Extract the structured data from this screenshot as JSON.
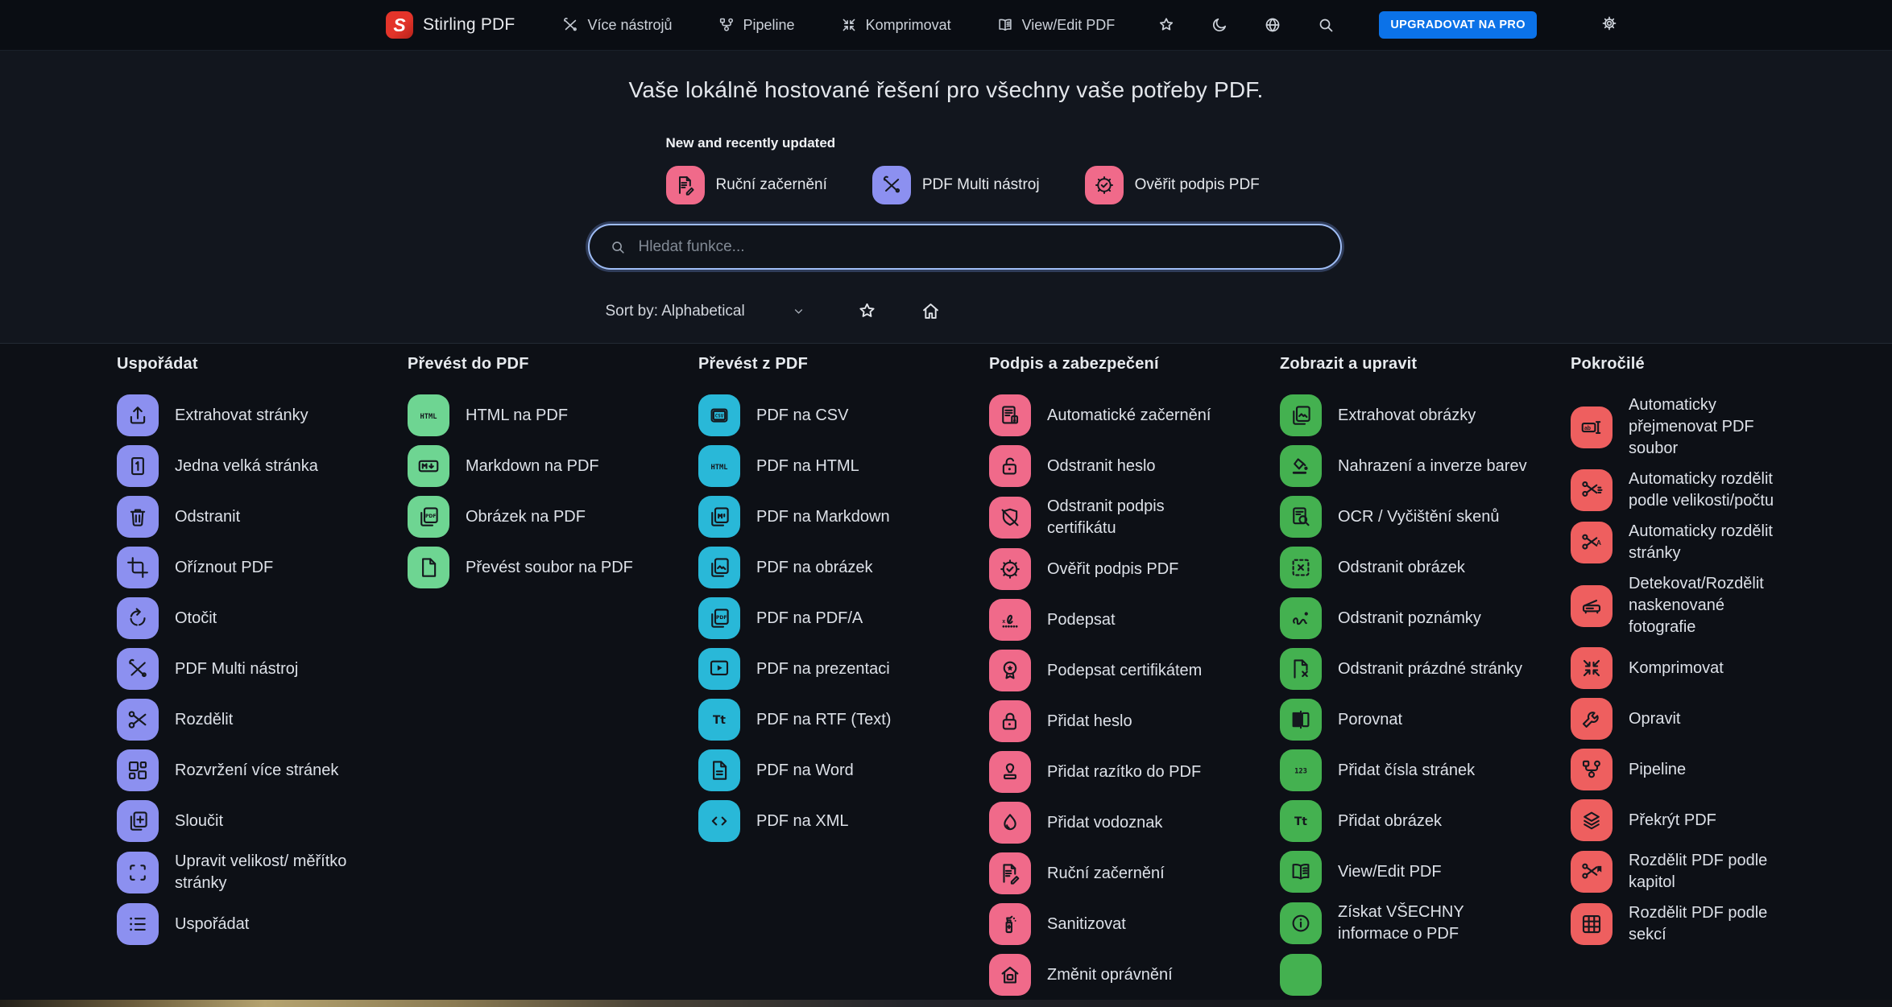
{
  "palette": {
    "purple": "#8c90f0",
    "mint": "#6ed592",
    "cyan": "#29b8d8",
    "pink": "#f06a8a",
    "green": "#44b150",
    "red": "#ee5f5f",
    "accent_blue": "#0b72e8"
  },
  "navbar": {
    "logo_letter": "S",
    "brand": "Stirling PDF",
    "items": [
      {
        "label": "Více nástrojů",
        "icon": "multitool"
      },
      {
        "label": "Pipeline",
        "icon": "pipeline"
      },
      {
        "label": "Komprimovat",
        "icon": "compress"
      },
      {
        "label": "View/Edit PDF",
        "icon": "book"
      }
    ],
    "action_icons": [
      "star",
      "moon",
      "globe",
      "search"
    ],
    "upgrade_label": "UPGRADOVAT NA PRO",
    "settings_icon": "gear"
  },
  "hero": {
    "title": "Vaše lokálně hostované řešení pro všechny vaše potřeby PDF.",
    "new_heading": "New and recently updated",
    "pills": [
      {
        "label": "Ruční začernění",
        "icon": "docedit",
        "color": "pink"
      },
      {
        "label": "PDF Multi nástroj",
        "icon": "multitool",
        "color": "purple"
      },
      {
        "label": "Ověřit podpis PDF",
        "icon": "sealcheck",
        "color": "pink"
      }
    ],
    "search_placeholder": "Hledat funkce...",
    "sort_label": "Sort by: Alphabetical"
  },
  "tools": {
    "columns": [
      {
        "title": "Uspořádat",
        "color": "purple",
        "items": [
          {
            "label": "Extrahovat stránky",
            "icon": "upload"
          },
          {
            "label": "Jedna velká stránka",
            "icon": "page1"
          },
          {
            "label": "Odstranit",
            "icon": "trash"
          },
          {
            "label": "Oříznout PDF",
            "icon": "crop"
          },
          {
            "label": "Otočit",
            "icon": "rotate"
          },
          {
            "label": "PDF Multi nástroj",
            "icon": "multitool"
          },
          {
            "label": "Rozdělit",
            "icon": "scissors"
          },
          {
            "label": "Rozvržení více stránek",
            "icon": "layout"
          },
          {
            "label": "Sloučit",
            "icon": "merge"
          },
          {
            "label": "Upravit velikost/ měřítko stránky",
            "icon": "resize"
          },
          {
            "label": "Uspořádat",
            "icon": "listorder"
          }
        ]
      },
      {
        "title": "Převést do PDF",
        "color": "mint",
        "items": [
          {
            "label": "HTML na PDF",
            "icon": "html"
          },
          {
            "label": "Markdown na PDF",
            "icon": "mdbadge"
          },
          {
            "label": "Obrázek na PDF",
            "icon": "pdfpages"
          },
          {
            "label": "Převést soubor na PDF",
            "icon": "file"
          }
        ]
      },
      {
        "title": "Převést z PDF",
        "color": "cyan",
        "items": [
          {
            "label": "PDF na CSV",
            "icon": "csv"
          },
          {
            "label": "PDF na HTML",
            "icon": "html"
          },
          {
            "label": "PDF na Markdown",
            "icon": "mdpages"
          },
          {
            "label": "PDF na obrázek",
            "icon": "imgpages"
          },
          {
            "label": "PDF na PDF/A",
            "icon": "pdfpages"
          },
          {
            "label": "PDF na prezentaci",
            "icon": "pres"
          },
          {
            "label": "PDF na RTF (Text)",
            "icon": "texttool"
          },
          {
            "label": "PDF na Word",
            "icon": "wordfile"
          },
          {
            "label": "PDF na XML",
            "icon": "xml"
          }
        ]
      },
      {
        "title": "Podpis a zabezpečení",
        "color": "pink",
        "items": [
          {
            "label": "Automatické začernění",
            "icon": "autoredact"
          },
          {
            "label": "Odstranit heslo",
            "icon": "unlock"
          },
          {
            "label": "Odstranit podpis certifikátu",
            "icon": "shieldoff"
          },
          {
            "label": "Ověřit podpis PDF",
            "icon": "sealcheck"
          },
          {
            "label": "Podepsat",
            "icon": "signature"
          },
          {
            "label": "Podepsat certifikátem",
            "icon": "sealstar"
          },
          {
            "label": "Přidat heslo",
            "icon": "lock"
          },
          {
            "label": "Přidat razítko do PDF",
            "icon": "stamp"
          },
          {
            "label": "Přidat vodoznak",
            "icon": "droplet"
          },
          {
            "label": "Ruční začernění",
            "icon": "docedit"
          },
          {
            "label": "Sanitizovat",
            "icon": "sanitize"
          },
          {
            "label": "Změnit oprávnění",
            "icon": "perm"
          }
        ]
      },
      {
        "title": "Zobrazit a upravit",
        "color": "green",
        "items": [
          {
            "label": "Extrahovat obrázky",
            "icon": "imgpages"
          },
          {
            "label": "Nahrazení a inverze barev",
            "icon": "colorreplace"
          },
          {
            "label": "OCR / Vyčištění skenů",
            "icon": "ocr"
          },
          {
            "label": "Odstranit obrázek",
            "icon": "removeimg"
          },
          {
            "label": "Odstranit poznámky",
            "icon": "removeannot"
          },
          {
            "label": "Odstranit prázdné stránky",
            "icon": "removeblank"
          },
          {
            "label": "Porovnat",
            "icon": "compare"
          },
          {
            "label": "Přidat čísla stránek",
            "icon": "num123"
          },
          {
            "label": "Přidat obrázek",
            "icon": "texttool"
          },
          {
            "label": "View/Edit PDF",
            "icon": "book"
          },
          {
            "label": "Získat VŠECHNY informace o PDF",
            "icon": "info"
          },
          {
            "label": "",
            "icon": "blank"
          }
        ]
      },
      {
        "title": "Pokročilé",
        "color": "red",
        "items": [
          {
            "label": "Automaticky přejmenovat PDF soubor",
            "icon": "rename"
          },
          {
            "label": "Automaticky rozdělit podle velikosti/počtu",
            "icon": "splitsize"
          },
          {
            "label": "Automaticky rozdělit stránky",
            "icon": "splitpages"
          },
          {
            "label": "Detekovat/Rozdělit naskenované fotografie",
            "icon": "scanner"
          },
          {
            "label": "Komprimovat",
            "icon": "compress"
          },
          {
            "label": "Opravit",
            "icon": "wrench"
          },
          {
            "label": "Pipeline",
            "icon": "pipeline"
          },
          {
            "label": "Překrýt PDF",
            "icon": "overlay"
          },
          {
            "label": "Rozdělit PDF podle kapitol",
            "icon": "splitchapters"
          },
          {
            "label": "Rozdělit PDF podle sekcí",
            "icon": "grid9"
          }
        ]
      }
    ]
  }
}
